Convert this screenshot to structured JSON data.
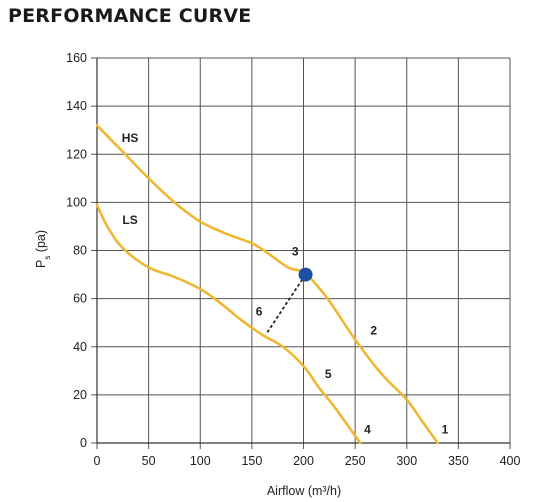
{
  "title": "PERFORMANCE CURVE",
  "colors": {
    "curve": "#F0B733",
    "point": "#1F4FA0",
    "grid": "#555555",
    "dashed": "#222222"
  },
  "chart_data": {
    "type": "line",
    "title": "PERFORMANCE CURVE",
    "xlabel": "Airflow (m³/h)",
    "ylabel": "P (pa)",
    "ylabel_subscript": "s",
    "xlim": [
      0,
      400
    ],
    "ylim": [
      0,
      160
    ],
    "xticks": [
      0,
      50,
      100,
      150,
      200,
      250,
      300,
      350,
      400
    ],
    "yticks": [
      0,
      20,
      40,
      60,
      80,
      100,
      120,
      140,
      160
    ],
    "grid": true,
    "series": [
      {
        "name": "HS",
        "x": [
          0,
          25,
          50,
          75,
          100,
          125,
          150,
          165,
          185,
          200,
          212,
          225,
          250,
          275,
          300,
          315,
          330
        ],
        "y": [
          132,
          121,
          110,
          100,
          92,
          87,
          83,
          79,
          73,
          71,
          66,
          59,
          43,
          29,
          18,
          9,
          0
        ]
      },
      {
        "name": "LS",
        "x": [
          0,
          10,
          25,
          50,
          75,
          100,
          120,
          140,
          160,
          180,
          200,
          215,
          230,
          245,
          255
        ],
        "y": [
          99,
          90,
          81,
          73,
          69,
          64,
          58,
          51,
          45,
          40,
          32,
          23,
          15,
          6,
          0
        ]
      }
    ],
    "points": [
      {
        "x": 202,
        "y": 70
      }
    ],
    "dashed_line": {
      "x": [
        165,
        202
      ],
      "y": [
        46,
        70
      ]
    },
    "annotations": [
      {
        "text": "HS",
        "x": 32,
        "y": 125
      },
      {
        "text": "LS",
        "x": 32,
        "y": 91
      },
      {
        "text": "1",
        "x": 337,
        "y": 4
      },
      {
        "text": "2",
        "x": 268,
        "y": 45
      },
      {
        "text": "3",
        "x": 192,
        "y": 78
      },
      {
        "text": "4",
        "x": 262,
        "y": 4
      },
      {
        "text": "5",
        "x": 224,
        "y": 27
      },
      {
        "text": "6",
        "x": 157,
        "y": 53
      }
    ]
  }
}
